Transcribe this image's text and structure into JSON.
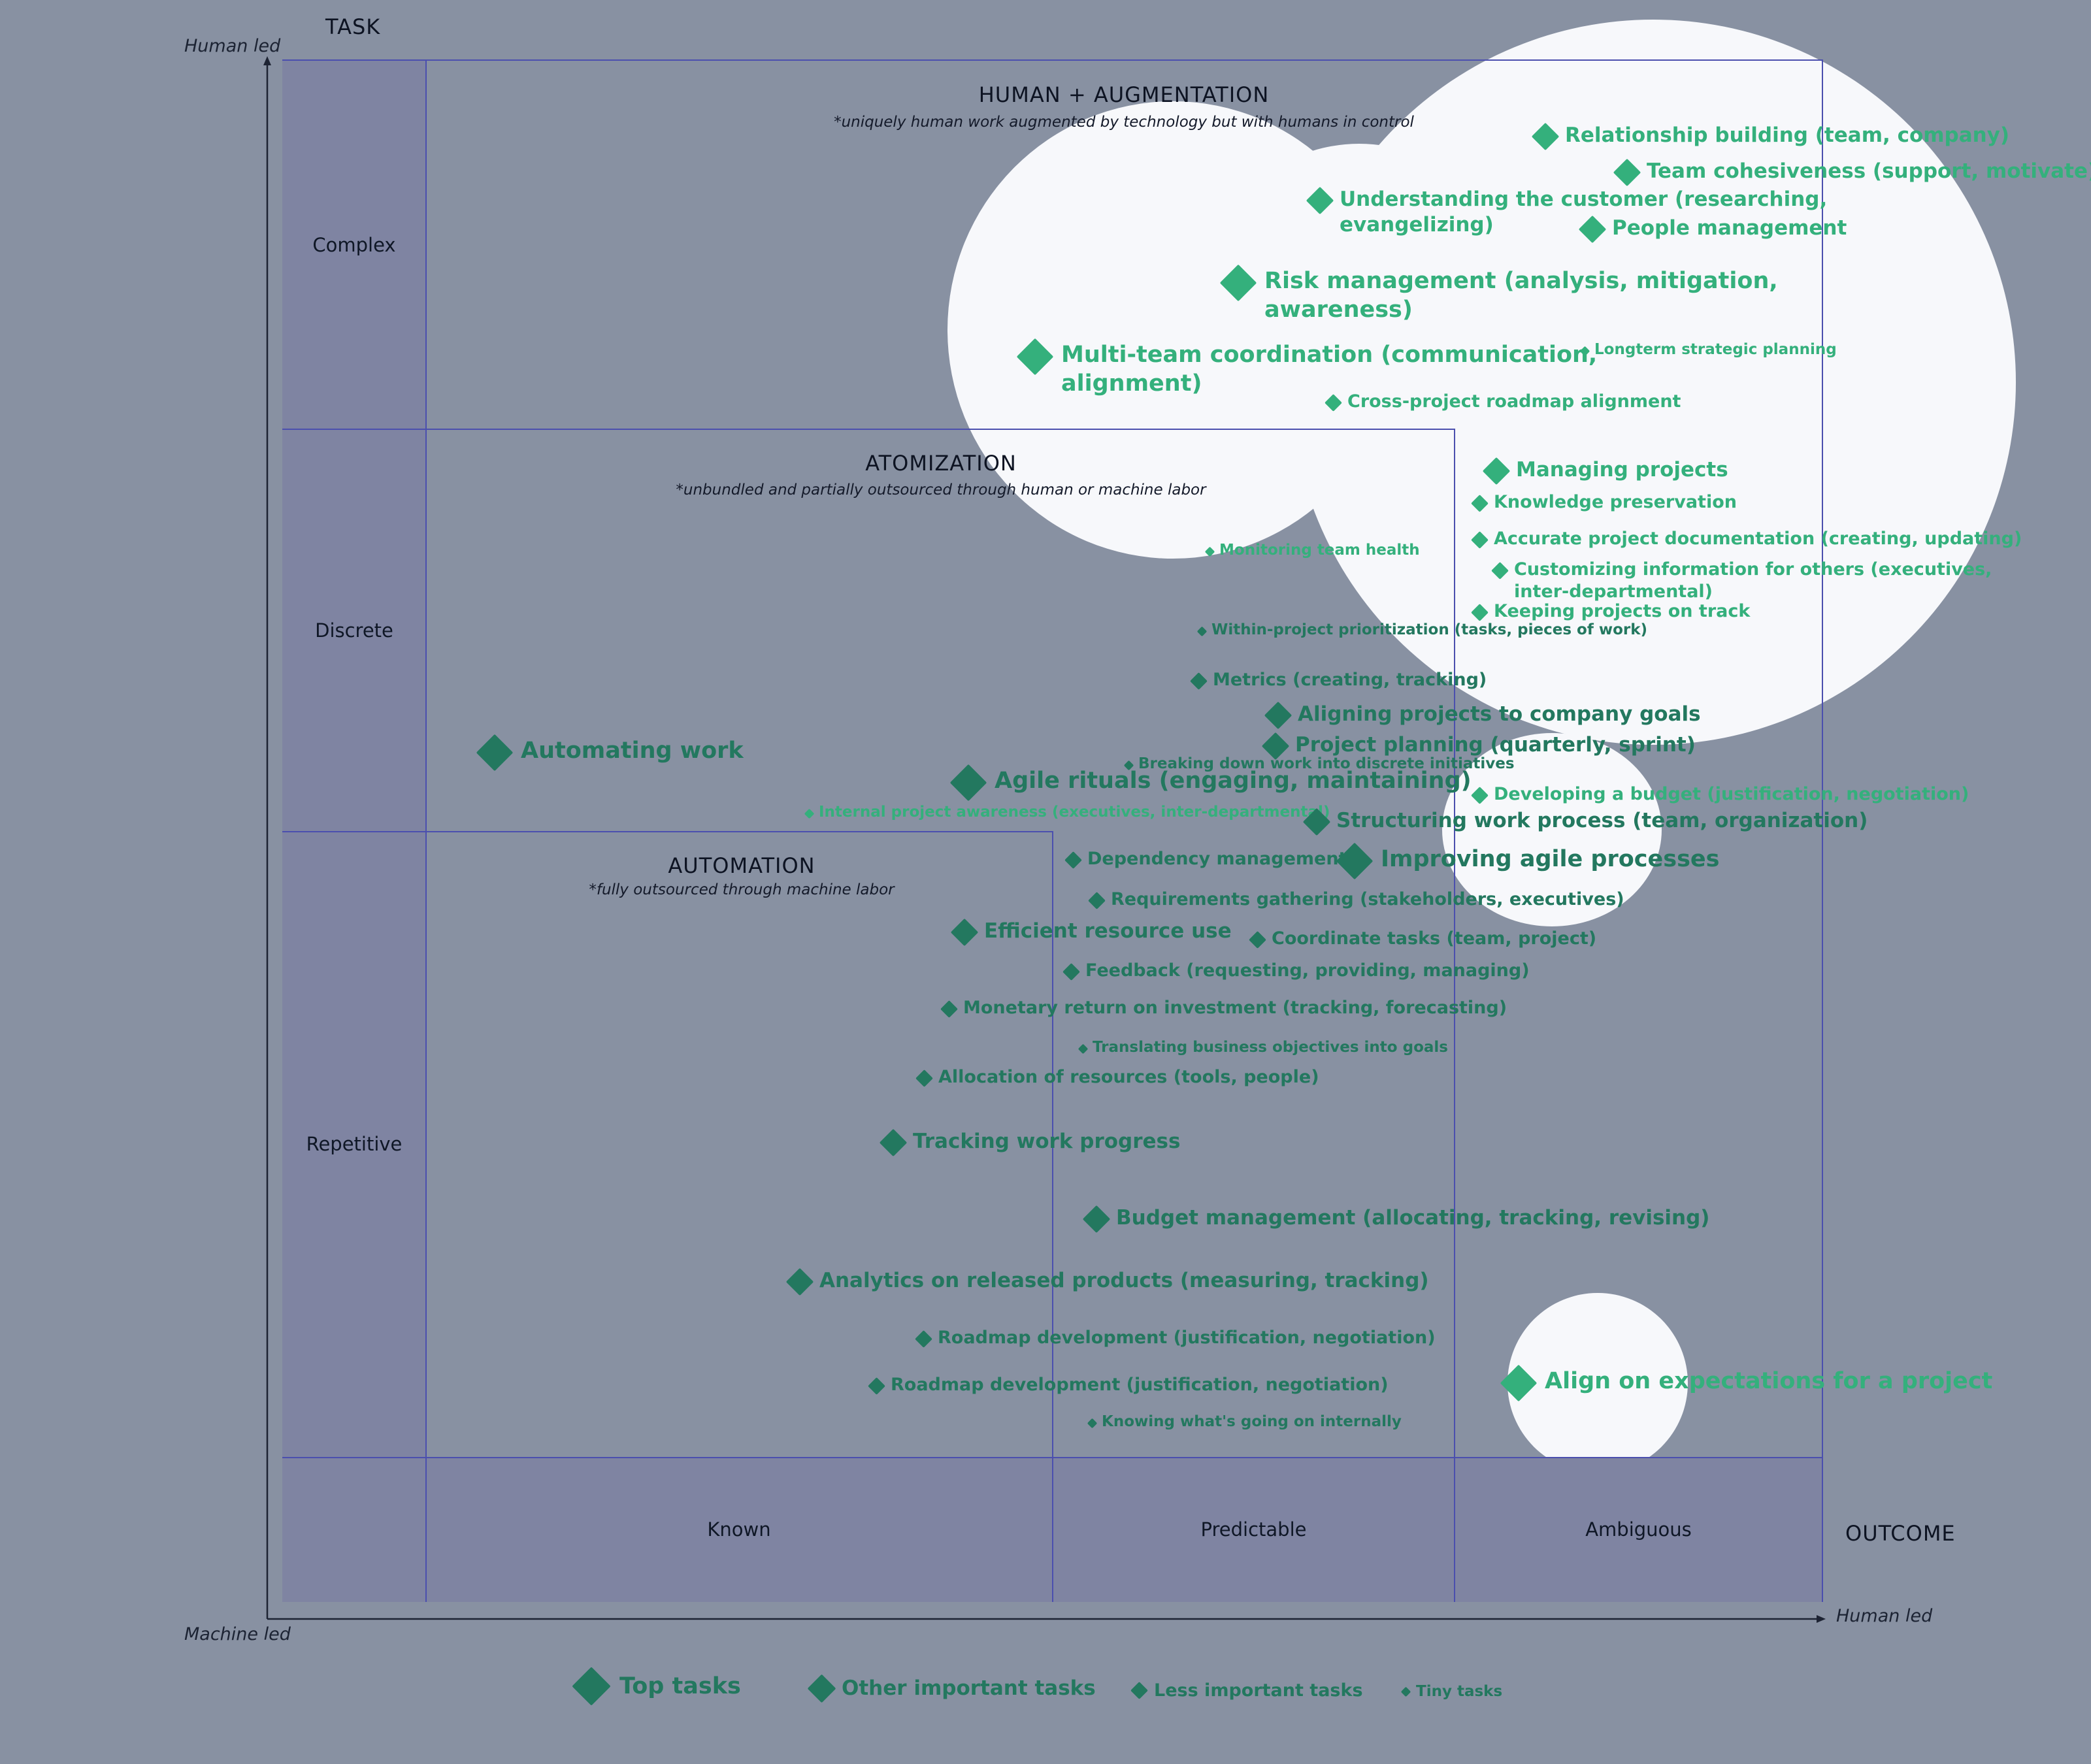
{
  "labels": {
    "task": "TASK",
    "outcome": "OUTCOME",
    "human_led_y": "Human led",
    "machine_led": "Machine led",
    "human_led_x": "Human led"
  },
  "rows": {
    "complex": "Complex",
    "discrete": "Discrete",
    "repetitive": "Repetitive"
  },
  "cols": {
    "known": "Known",
    "predictable": "Predictable",
    "ambiguous": "Ambiguous"
  },
  "zones": {
    "human": {
      "title": "HUMAN + AUGMENTATION",
      "note": "*uniquely human work augmented by technology but with humans in control"
    },
    "atom": {
      "title": "ATOMIZATION",
      "note": "*unbundled and partially outsourced through human or machine labor"
    },
    "auto": {
      "title": "AUTOMATION",
      "note": "*fully outsourced through machine labor"
    }
  },
  "legend": {
    "top": "Top tasks",
    "other": "Other important tasks",
    "less": "Less important tasks",
    "tiny": "Tiny tasks"
  },
  "colors": {
    "dark_green": "#23785f",
    "light_green": "#34b07c",
    "bubble": "#f7f8fb",
    "background": "#8891a2",
    "band": "#7f84a2",
    "line": "#4b4fae"
  },
  "tasks": [
    {
      "label": "Relationship building (team, company)",
      "importance": "other",
      "tone": "light"
    },
    {
      "label": "Team cohesiveness (support, motivate)",
      "importance": "other",
      "tone": "light"
    },
    {
      "label": "Understanding the customer (researching,\nevangelizing)",
      "importance": "other",
      "tone": "light"
    },
    {
      "label": "People management",
      "importance": "other",
      "tone": "light"
    },
    {
      "label": "Risk management (analysis, mitigation,\nawareness)",
      "importance": "top",
      "tone": "light"
    },
    {
      "label": "Longterm strategic planning",
      "importance": "tiny",
      "tone": "light"
    },
    {
      "label": "Multi-team coordination (communication,\nalignment)",
      "importance": "top",
      "tone": "light"
    },
    {
      "label": "Cross-project roadmap alignment",
      "importance": "less",
      "tone": "light"
    },
    {
      "label": "Managing projects",
      "importance": "other",
      "tone": "light"
    },
    {
      "label": "Knowledge preservation",
      "importance": "less",
      "tone": "light"
    },
    {
      "label": "Monitoring team health",
      "importance": "tiny",
      "tone": "light"
    },
    {
      "label": "Accurate project documentation (creating, updating)",
      "importance": "less",
      "tone": "light"
    },
    {
      "label": "Customizing information for others (executives,\ninter-departmental)",
      "importance": "less",
      "tone": "light"
    },
    {
      "label": "Keeping projects on track",
      "importance": "less",
      "tone": "light"
    },
    {
      "label": "Within-project prioritization (tasks, pieces of work)",
      "importance": "tiny",
      "tone": "dark"
    },
    {
      "label": "Metrics (creating, tracking)",
      "importance": "less",
      "tone": "dark"
    },
    {
      "label": "Aligning projects to company goals",
      "importance": "other",
      "tone": "dark"
    },
    {
      "label": "Project planning (quarterly, sprint)",
      "importance": "other",
      "tone": "dark"
    },
    {
      "label": "Breaking down work into discrete initiatives",
      "importance": "tiny",
      "tone": "dark"
    },
    {
      "label": "Automating work",
      "importance": "top",
      "tone": "dark"
    },
    {
      "label": "Agile rituals (engaging, maintaining)",
      "importance": "top",
      "tone": "dark"
    },
    {
      "label": "Developing a budget (justification, negotiation)",
      "importance": "less",
      "tone": "light"
    },
    {
      "label": "Internal project awareness (executives, inter-departmental)",
      "importance": "tiny",
      "tone": "light"
    },
    {
      "label": "Structuring work process (team, organization)",
      "importance": "other",
      "tone": "dark"
    },
    {
      "label": "Dependency management",
      "importance": "less",
      "tone": "dark"
    },
    {
      "label": "Improving agile processes",
      "importance": "top",
      "tone": "dark"
    },
    {
      "label": "Requirements gathering (stakeholders, executives)",
      "importance": "less",
      "tone": "dark"
    },
    {
      "label": "Efficient resource use",
      "importance": "other",
      "tone": "dark"
    },
    {
      "label": "Coordinate tasks (team, project)",
      "importance": "less",
      "tone": "dark"
    },
    {
      "label": "Feedback (requesting, providing, managing)",
      "importance": "less",
      "tone": "dark"
    },
    {
      "label": "Monetary return on investment (tracking, forecasting)",
      "importance": "less",
      "tone": "dark"
    },
    {
      "label": "Translating business objectives into goals",
      "importance": "tiny",
      "tone": "dark"
    },
    {
      "label": "Allocation of resources (tools, people)",
      "importance": "less",
      "tone": "dark"
    },
    {
      "label": "Tracking work progress",
      "importance": "other",
      "tone": "dark"
    },
    {
      "label": "Budget management (allocating, tracking, revising)",
      "importance": "other",
      "tone": "dark"
    },
    {
      "label": "Analytics on released products (measuring, tracking)",
      "importance": "other",
      "tone": "dark"
    },
    {
      "label": "Roadmap development (justification, negotiation)",
      "importance": "less",
      "tone": "dark"
    },
    {
      "label": "Roadmap development (justification, negotiation)",
      "importance": "less",
      "tone": "dark"
    },
    {
      "label": "Knowing what's going on internally",
      "importance": "tiny",
      "tone": "dark"
    },
    {
      "label": "Align on expectations for a project",
      "importance": "top",
      "tone": "light"
    }
  ]
}
